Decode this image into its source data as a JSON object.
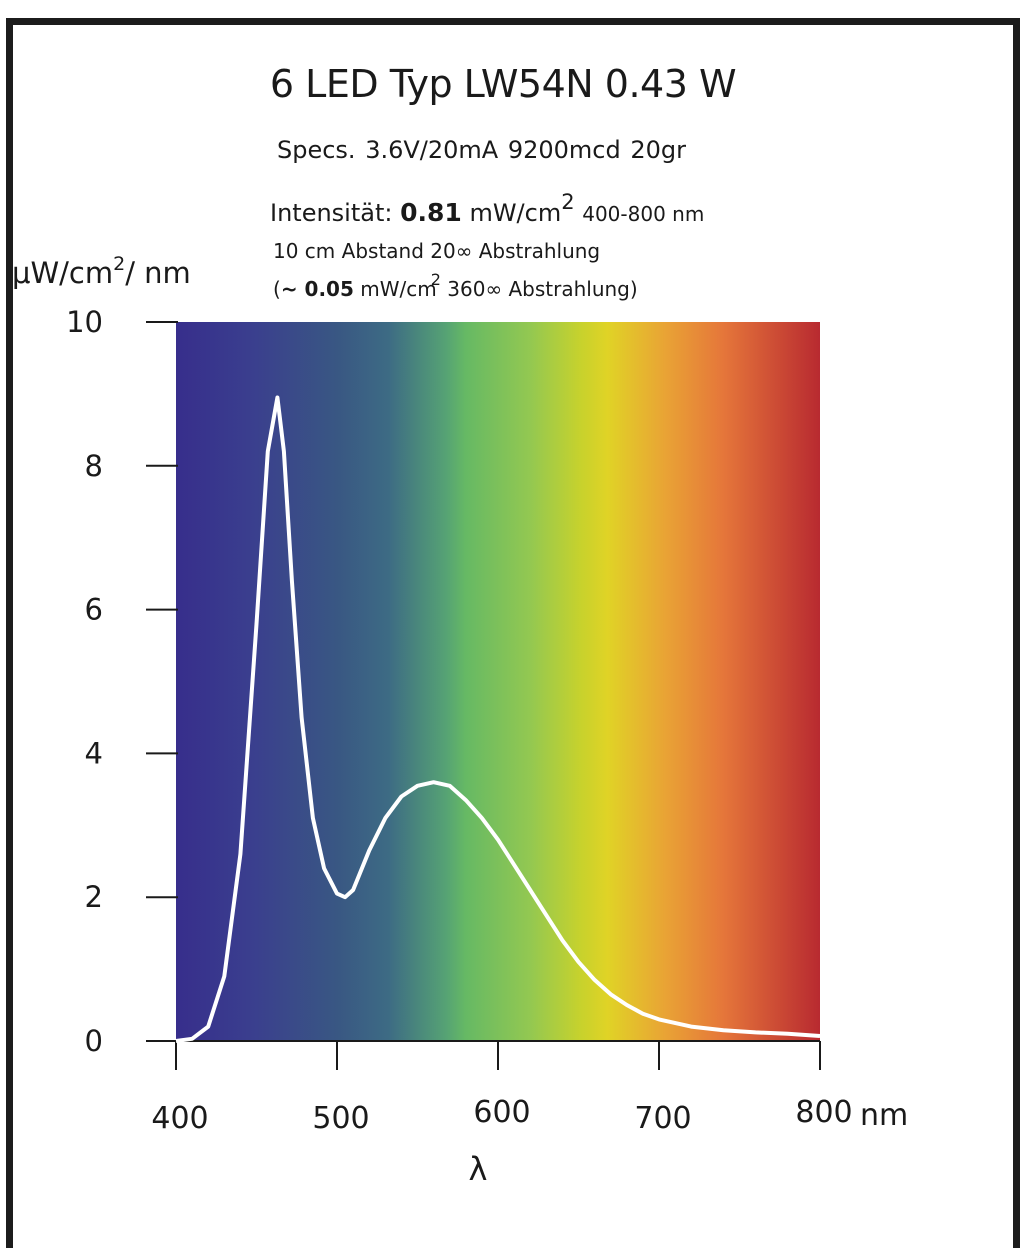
{
  "header": {
    "title": "6 LED  Typ LW54N   0.43 W",
    "specs": "Specs. 3.6V/20mA    9200mcd     20gr",
    "intensity_label": "Intensität:",
    "intensity_value": "0.81",
    "intensity_unit": "mW/cm",
    "intensity_unit_exp": "2",
    "intensity_range": "400-800 nm",
    "distance_line": "10 cm  Abstand    20∞ Abstrahlung",
    "note_open": "(",
    "note_value": "~ 0.05",
    "note_unit": "mW/cm",
    "note_unit_exp": "2",
    "note_rest": " 360∞ Abstrahlung)"
  },
  "ylabel": {
    "pre": "μW/cm",
    "exp": "2",
    "post": "/ nm"
  },
  "colors": {
    "curve": "#ffffff",
    "axis": "#1a1a1a",
    "frame": "#1c1c1c"
  },
  "chart_data": {
    "type": "line",
    "title": "6 LED  Typ LW54N   0.43 W",
    "xlabel": "λ",
    "xunit": "nm",
    "ylabel": "μW/cm2/ nm",
    "xlim": [
      400,
      800
    ],
    "ylim": [
      0,
      10
    ],
    "xticks": [
      400,
      500,
      600,
      700,
      800
    ],
    "yticks": [
      0,
      2,
      4,
      6,
      8,
      10
    ],
    "background": "visible spectrum gradient (violet to red)",
    "grid": false,
    "series": [
      {
        "color": "#ffffff",
        "points": [
          [
            400,
            0.0
          ],
          [
            410,
            0.03
          ],
          [
            420,
            0.2
          ],
          [
            430,
            0.9
          ],
          [
            440,
            2.6
          ],
          [
            450,
            5.8
          ],
          [
            457,
            8.2
          ],
          [
            463,
            8.95
          ],
          [
            467,
            8.2
          ],
          [
            472,
            6.4
          ],
          [
            478,
            4.5
          ],
          [
            485,
            3.1
          ],
          [
            492,
            2.4
          ],
          [
            500,
            2.05
          ],
          [
            505,
            2.0
          ],
          [
            510,
            2.1
          ],
          [
            520,
            2.65
          ],
          [
            530,
            3.1
          ],
          [
            540,
            3.4
          ],
          [
            550,
            3.55
          ],
          [
            560,
            3.6
          ],
          [
            570,
            3.55
          ],
          [
            580,
            3.35
          ],
          [
            590,
            3.1
          ],
          [
            600,
            2.8
          ],
          [
            610,
            2.45
          ],
          [
            620,
            2.1
          ],
          [
            630,
            1.75
          ],
          [
            640,
            1.4
          ],
          [
            650,
            1.1
          ],
          [
            660,
            0.85
          ],
          [
            670,
            0.65
          ],
          [
            680,
            0.5
          ],
          [
            690,
            0.38
          ],
          [
            700,
            0.3
          ],
          [
            720,
            0.2
          ],
          [
            740,
            0.15
          ],
          [
            760,
            0.12
          ],
          [
            780,
            0.1
          ],
          [
            800,
            0.07
          ]
        ]
      }
    ]
  }
}
